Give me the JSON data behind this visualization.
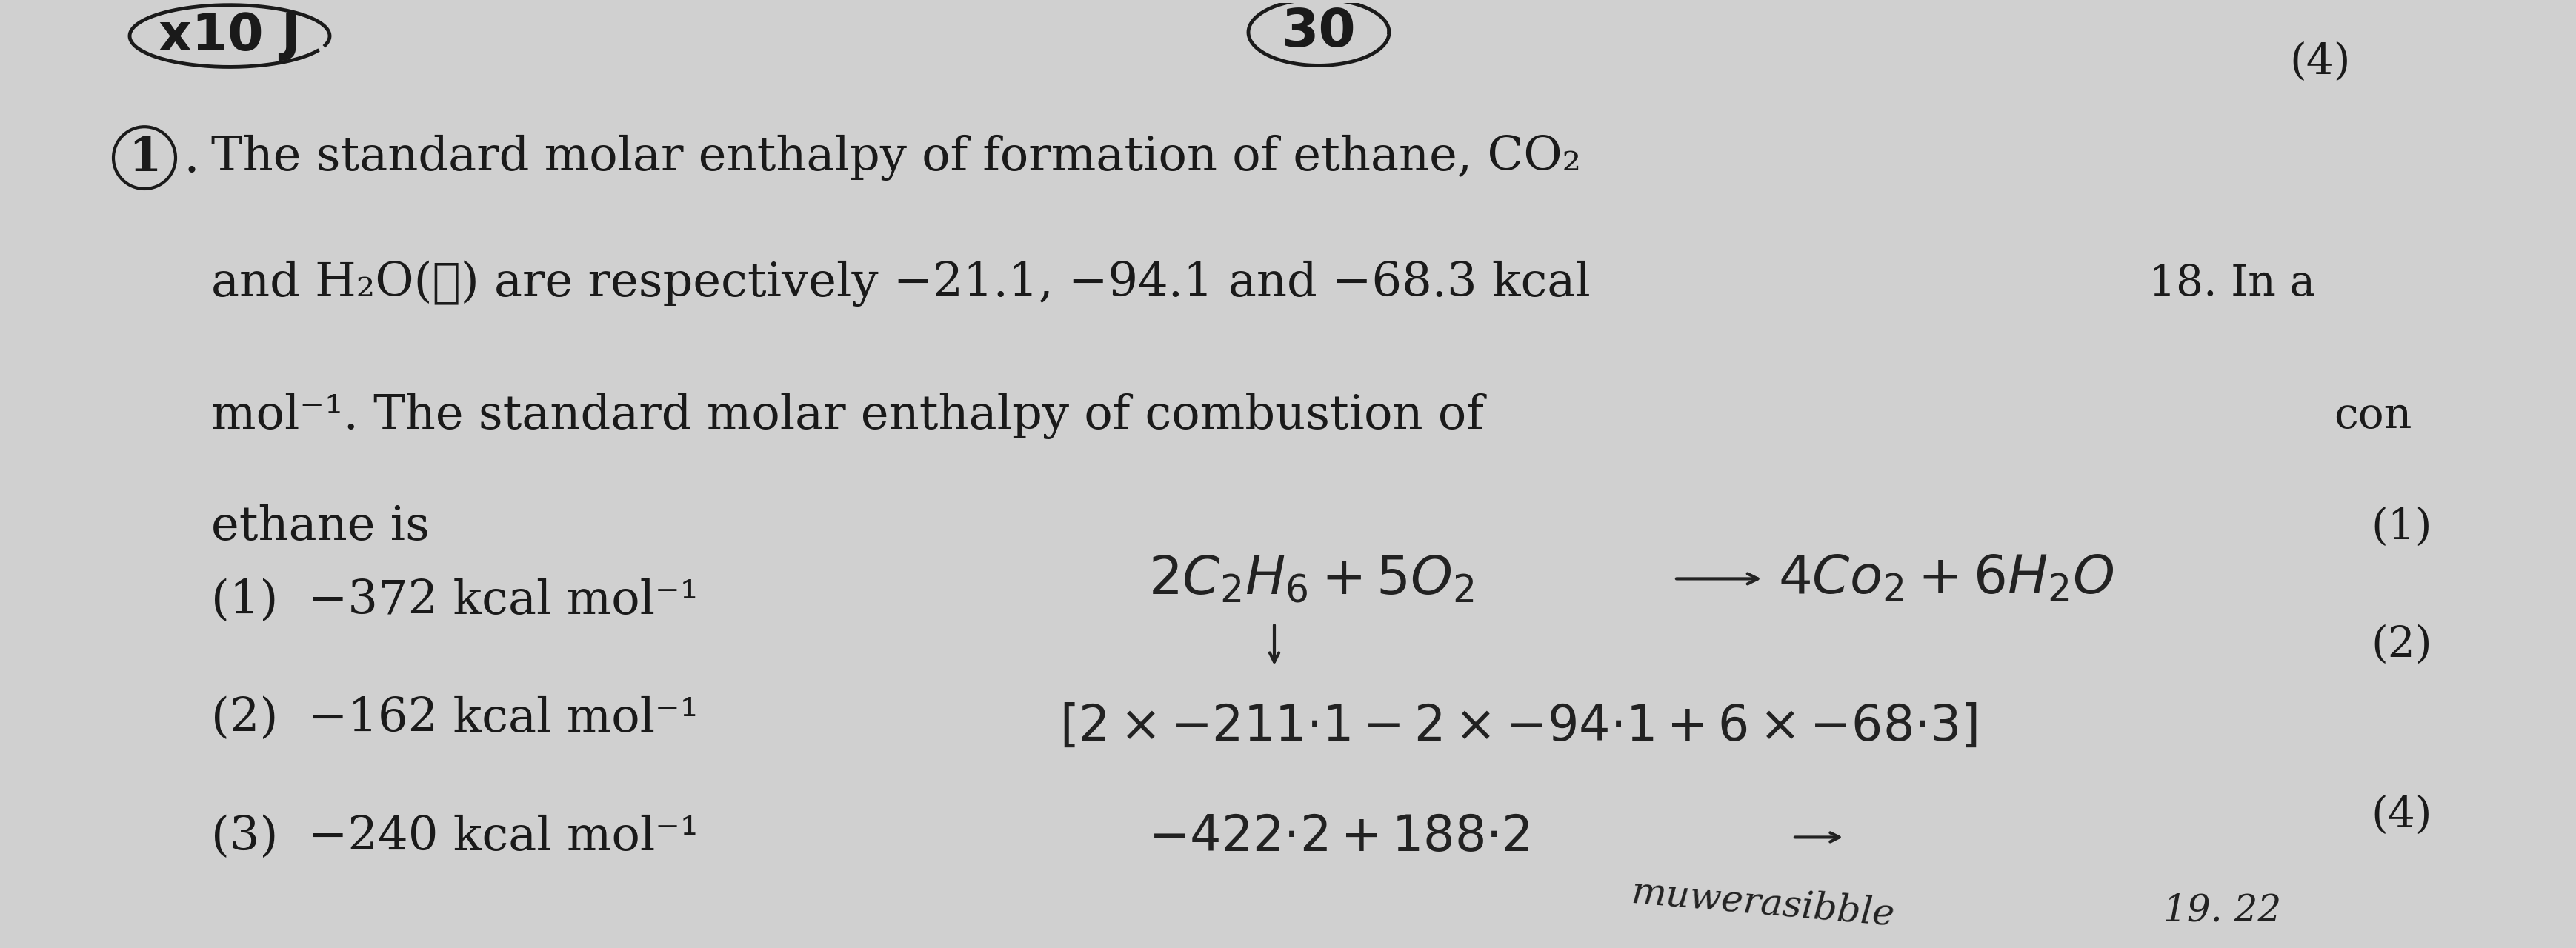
{
  "bg_color": "#d0d0d0",
  "text_color": "#1a1a1a",
  "hw_color": "#222222",
  "top_left_text": "10 J",
  "top_center_text": "30",
  "side_top": "(4)",
  "q_number": "1",
  "line1": "The standard molar enthalpy of formation of ethane, CO₂",
  "line2": "and H₂O(ℓ) are respectively −21.1, −94.1 and −68.3 kcal",
  "line3": "mol⁻¹. The standard molar enthalpy of combustion of",
  "line4": "ethane is",
  "opt1": "(1)  −372 kcal mol⁻¹",
  "opt2": "(2)  −162 kcal mol⁻¹",
  "opt3": "(3)  −240 kcal mol⁻¹",
  "side_18": "18. In a",
  "side_con": "con",
  "side_1": "(1)",
  "side_2": "(2)",
  "side_4": "(4)",
  "fs_main": 46,
  "fs_hw": 52,
  "fs_side": 42
}
